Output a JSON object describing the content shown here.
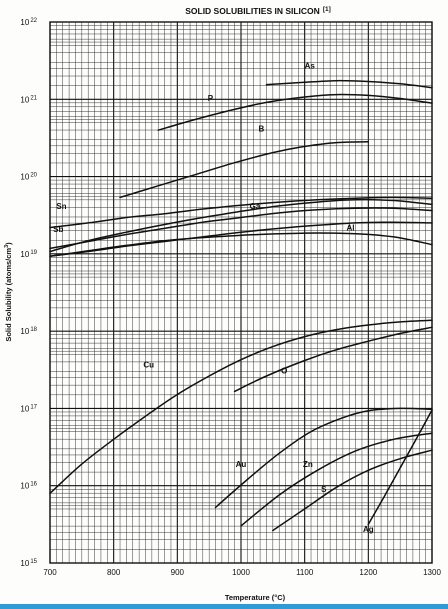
{
  "chart_data": {
    "type": "line",
    "title": "SOLID SOLUBILITIES IN SILICON",
    "title_ref": "[1]",
    "xlabel": "Temperature (°C)",
    "ylabel": "Solid Solubility (atoms/cm",
    "ylabel_sup": "3",
    "ylabel_close": ")",
    "xlim": [
      700,
      1300
    ],
    "ylim_log10": [
      15,
      22
    ],
    "y_scale": "log",
    "grid": true,
    "x_ticks": [
      700,
      800,
      900,
      1000,
      1100,
      1200,
      1300
    ],
    "y_ticks": [
      {
        "exp": 15,
        "base": "10",
        "sup": "15"
      },
      {
        "exp": 16,
        "base": "10",
        "sup": "16"
      },
      {
        "exp": 17,
        "base": "10",
        "sup": "17"
      },
      {
        "exp": 18,
        "base": "10",
        "sup": "18"
      },
      {
        "exp": 19,
        "base": "10",
        "sup": "19"
      },
      {
        "exp": 20,
        "base": "10",
        "sup": "20"
      },
      {
        "exp": 21,
        "base": "10",
        "sup": "21"
      },
      {
        "exp": 22,
        "base": "10",
        "sup": "22"
      }
    ],
    "series": [
      {
        "name": "As",
        "label_at": [
          1108,
          21.4
        ],
        "points": [
          [
            1040,
            21.19
          ],
          [
            1100,
            21.22
          ],
          [
            1150,
            21.24
          ],
          [
            1200,
            21.23
          ],
          [
            1250,
            21.2
          ],
          [
            1300,
            21.15
          ]
        ]
      },
      {
        "name": "P",
        "label_at": [
          952,
          20.98
        ],
        "points": [
          [
            870,
            20.6
          ],
          [
            920,
            20.72
          ],
          [
            980,
            20.85
          ],
          [
            1040,
            20.96
          ],
          [
            1100,
            21.03
          ],
          [
            1150,
            21.06
          ],
          [
            1200,
            21.05
          ],
          [
            1250,
            21.01
          ],
          [
            1300,
            20.95
          ]
        ]
      },
      {
        "name": "B",
        "label_at": [
          1032,
          20.58
        ],
        "points": [
          [
            810,
            19.73
          ],
          [
            870,
            19.88
          ],
          [
            930,
            20.03
          ],
          [
            990,
            20.18
          ],
          [
            1050,
            20.31
          ],
          [
            1100,
            20.39
          ],
          [
            1150,
            20.44
          ],
          [
            1200,
            20.45
          ]
        ]
      },
      {
        "name": "Ga",
        "label_at": [
          1022,
          19.58
        ],
        "points": [
          [
            700,
            19.03
          ],
          [
            760,
            19.17
          ],
          [
            820,
            19.28
          ],
          [
            880,
            19.38
          ],
          [
            940,
            19.47
          ],
          [
            1000,
            19.55
          ],
          [
            1060,
            19.62
          ],
          [
            1120,
            19.67
          ],
          [
            1180,
            19.7
          ],
          [
            1240,
            19.69
          ],
          [
            1300,
            19.64
          ]
        ]
      },
      {
        "name": "Sn",
        "label_at": [
          718,
          19.58
        ],
        "points": [
          [
            700,
            19.34
          ],
          [
            760,
            19.4
          ],
          [
            820,
            19.47
          ],
          [
            880,
            19.52
          ],
          [
            940,
            19.58
          ],
          [
            1000,
            19.63
          ],
          [
            1060,
            19.67
          ],
          [
            1120,
            19.7
          ],
          [
            1180,
            19.72
          ],
          [
            1240,
            19.73
          ],
          [
            1300,
            19.72
          ]
        ]
      },
      {
        "name": "Sb",
        "label_at": [
          713,
          19.28
        ],
        "points": [
          [
            700,
            19.07
          ],
          [
            760,
            19.16
          ],
          [
            820,
            19.25
          ],
          [
            880,
            19.33
          ],
          [
            940,
            19.41
          ],
          [
            1000,
            19.47
          ],
          [
            1060,
            19.53
          ],
          [
            1120,
            19.57
          ],
          [
            1180,
            19.59
          ],
          [
            1240,
            19.59
          ],
          [
            1300,
            19.56
          ]
        ]
      },
      {
        "name": "",
        "label_at": null,
        "points": [
          [
            700,
            18.97
          ],
          [
            760,
            19.03
          ],
          [
            820,
            19.1
          ],
          [
            880,
            19.16
          ],
          [
            940,
            19.22
          ],
          [
            1000,
            19.28
          ],
          [
            1060,
            19.33
          ],
          [
            1120,
            19.37
          ],
          [
            1180,
            19.4
          ],
          [
            1240,
            19.41
          ],
          [
            1300,
            19.4
          ]
        ]
      },
      {
        "name": "Al",
        "label_at": [
          1172,
          19.3
        ],
        "points": [
          [
            700,
            18.97
          ],
          [
            760,
            19.04
          ],
          [
            820,
            19.11
          ],
          [
            880,
            19.17
          ],
          [
            940,
            19.21
          ],
          [
            1000,
            19.24
          ],
          [
            1060,
            19.26
          ],
          [
            1120,
            19.27
          ],
          [
            1180,
            19.26
          ],
          [
            1240,
            19.22
          ],
          [
            1300,
            19.12
          ]
        ]
      },
      {
        "name": "Cu",
        "label_at": [
          855,
          17.53
        ],
        "points": [
          [
            700,
            15.9
          ],
          [
            750,
            16.28
          ],
          [
            800,
            16.6
          ],
          [
            850,
            16.9
          ],
          [
            900,
            17.18
          ],
          [
            950,
            17.42
          ],
          [
            1000,
            17.63
          ],
          [
            1050,
            17.8
          ],
          [
            1100,
            17.93
          ],
          [
            1150,
            18.02
          ],
          [
            1200,
            18.08
          ],
          [
            1250,
            18.12
          ],
          [
            1300,
            18.14
          ]
        ]
      },
      {
        "name": "O",
        "label_at": [
          1068,
          17.45
        ],
        "points": [
          [
            990,
            17.22
          ],
          [
            1040,
            17.42
          ],
          [
            1100,
            17.62
          ],
          [
            1150,
            17.76
          ],
          [
            1200,
            17.87
          ],
          [
            1250,
            17.97
          ],
          [
            1300,
            18.05
          ]
        ]
      },
      {
        "name": "Au",
        "label_at": [
          1000,
          16.24
        ],
        "points": [
          [
            960,
            15.72
          ],
          [
            1010,
            16.08
          ],
          [
            1060,
            16.42
          ],
          [
            1110,
            16.7
          ],
          [
            1160,
            16.88
          ],
          [
            1200,
            16.97
          ],
          [
            1250,
            17.0
          ],
          [
            1300,
            16.99
          ]
        ]
      },
      {
        "name": "Zn",
        "label_at": [
          1105,
          16.24
        ],
        "points": [
          [
            1000,
            15.48
          ],
          [
            1060,
            15.88
          ],
          [
            1120,
            16.2
          ],
          [
            1180,
            16.45
          ],
          [
            1240,
            16.6
          ],
          [
            1300,
            16.68
          ]
        ]
      },
      {
        "name": "S",
        "label_at": [
          1130,
          15.92
        ],
        "points": [
          [
            1050,
            15.42
          ],
          [
            1100,
            15.7
          ],
          [
            1150,
            15.98
          ],
          [
            1200,
            16.2
          ],
          [
            1250,
            16.35
          ],
          [
            1300,
            16.46
          ]
        ]
      },
      {
        "name": "Ag",
        "label_at": [
          1200,
          15.4
        ],
        "points": [
          [
            1200,
            15.5
          ],
          [
            1225,
            15.86
          ],
          [
            1250,
            16.23
          ],
          [
            1275,
            16.6
          ],
          [
            1300,
            16.98
          ]
        ]
      }
    ]
  }
}
